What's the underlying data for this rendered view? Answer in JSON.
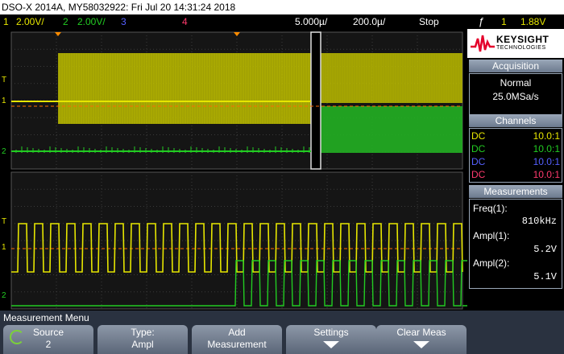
{
  "title_bar": "DSO-X 2014A, MY58032922: Fri Jul 20 14:31:24 2018",
  "status": {
    "ch1_num": "1",
    "ch1_scale": "2.00V/",
    "ch2_num": "2",
    "ch2_scale": "2.00V/",
    "ch3_num": "3",
    "ch4_num": "4",
    "timebase": "5.000µ/",
    "delay": "200.0µ/",
    "run_state": "Stop",
    "trigger_icon": "trigger-edge-icon",
    "trigger_source": "1",
    "trigger_level": "1.88V"
  },
  "colors": {
    "ch1": "#e6e600",
    "ch2": "#22cc22",
    "ch3": "#5560ff",
    "ch4": "#ff3a6e",
    "accent": "#ff8c00"
  },
  "brand": {
    "name": "KEYSIGHT",
    "sub": "TECHNOLOGIES"
  },
  "acquisition": {
    "title": "Acquisition",
    "mode": "Normal",
    "rate": "25.0MSa/s"
  },
  "channels": {
    "title": "Channels",
    "rows": [
      {
        "coupling": "DC",
        "probe": "10.0:1"
      },
      {
        "coupling": "DC",
        "probe": "10.0:1"
      },
      {
        "coupling": "DC",
        "probe": "10.0:1"
      },
      {
        "coupling": "DC",
        "probe": "10.0:1"
      }
    ]
  },
  "measurements": {
    "title": "Measurements",
    "items": [
      {
        "label": "Freq(1):",
        "value": "810kHz"
      },
      {
        "label": "Ampl(1):",
        "value": "5.2V"
      },
      {
        "label": "Ampl(2):",
        "value": "5.1V"
      }
    ]
  },
  "markers": {
    "ch1": "1",
    "ch2": "2",
    "trigger": "T"
  },
  "menu": {
    "title": "Measurement Menu",
    "keys": [
      {
        "line1": "Source",
        "line2": "2"
      },
      {
        "line1": "Type:",
        "line2": "Ampl"
      },
      {
        "line1": "Add",
        "line2": "Measurement"
      },
      {
        "line1": "Settings",
        "line2": ""
      },
      {
        "line1": "Clear Meas",
        "line2": ""
      }
    ]
  }
}
